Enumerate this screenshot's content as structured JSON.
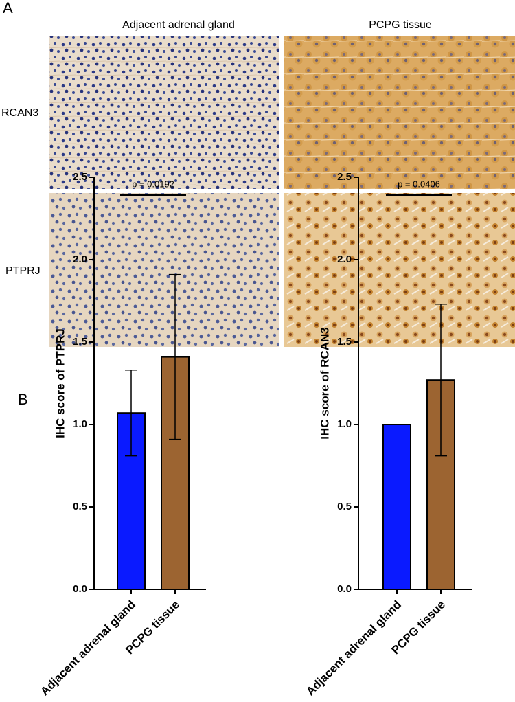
{
  "panel_a": {
    "label": "A",
    "columns": [
      "Adjacent adrenal gland",
      "PCPG tissue"
    ],
    "rows": [
      "RCAN3",
      "PTPRJ"
    ]
  },
  "panel_b": {
    "label": "B"
  },
  "chart_data": [
    {
      "type": "bar",
      "y_label": "IHC score of PTPRJ",
      "categories": [
        "Adjacent adrenal gland",
        "PCPG tissue"
      ],
      "values": [
        1.07,
        1.41
      ],
      "errors": [
        0.26,
        0.5
      ],
      "colors": [
        "#0a1aff",
        "#9c6431"
      ],
      "ylim": [
        0,
        2.5
      ],
      "yticks": [
        {
          "value": 0,
          "label": "0.0"
        },
        {
          "value": 0.5,
          "label": "0.5"
        },
        {
          "value": 1,
          "label": "1.0"
        },
        {
          "value": 1.5,
          "label": "1.5"
        },
        {
          "value": 2,
          "label": "2.0"
        },
        {
          "value": 2.5,
          "label": "2.5"
        }
      ],
      "annotation": "p = 0.0192"
    },
    {
      "type": "bar",
      "y_label": "IHC score of RCAN3",
      "categories": [
        "Adjacent adrenal gland",
        "PCPG tissue"
      ],
      "values": [
        1.0,
        1.27
      ],
      "errors": [
        0,
        0.46
      ],
      "colors": [
        "#0a1aff",
        "#9c6431"
      ],
      "ylim": [
        0,
        2.5
      ],
      "yticks": [
        {
          "value": 0,
          "label": "0.0"
        },
        {
          "value": 0.5,
          "label": "0.5"
        },
        {
          "value": 1,
          "label": "1.0"
        },
        {
          "value": 1.5,
          "label": "1.5"
        },
        {
          "value": 2,
          "label": "2.0"
        },
        {
          "value": 2.5,
          "label": "2.5"
        }
      ],
      "annotation": "p = 0.0406"
    }
  ]
}
